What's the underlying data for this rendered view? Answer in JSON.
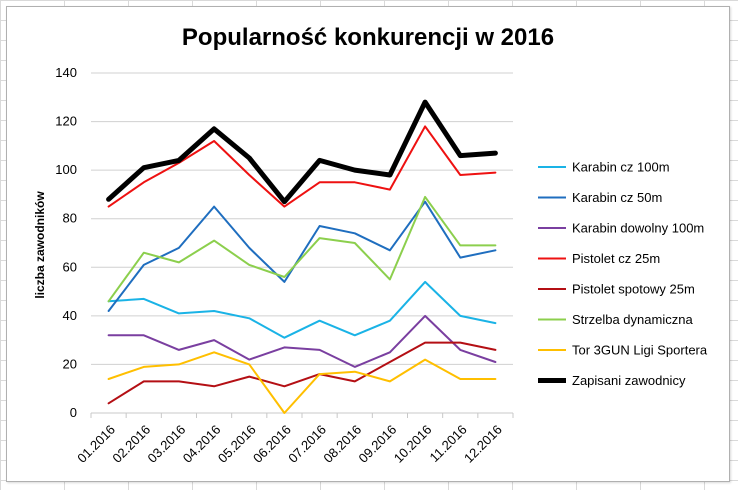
{
  "chart_data": {
    "type": "line",
    "title": "Popularność konkurencji w 2016",
    "xlabel": "",
    "ylabel": "liczba zawodników",
    "ylim": [
      0,
      140
    ],
    "yticks": [
      0,
      20,
      40,
      60,
      80,
      100,
      120,
      140
    ],
    "grid": "horizontal",
    "legend_position": "right",
    "categories": [
      "01.2016",
      "02.2016",
      "03.2016",
      "04.2016",
      "05.2016",
      "06.2016",
      "07.2016",
      "08.2016",
      "09.2016",
      "10.2016",
      "11.2016",
      "12.2016"
    ],
    "series": [
      {
        "name": "Karabin cz 100m",
        "color": "#1ab3e6",
        "values": [
          46,
          47,
          41,
          42,
          39,
          31,
          38,
          32,
          38,
          54,
          40,
          37
        ]
      },
      {
        "name": "Karabin cz 50m",
        "color": "#1f6ebf",
        "values": [
          42,
          61,
          68,
          85,
          68,
          54,
          77,
          74,
          67,
          87,
          64,
          67
        ]
      },
      {
        "name": "Karabin dowolny  100m",
        "color": "#7a3fa0",
        "values": [
          32,
          32,
          26,
          30,
          22,
          27,
          26,
          19,
          25,
          40,
          26,
          21
        ]
      },
      {
        "name": "Pistolet cz 25m",
        "color": "#ee1111",
        "values": [
          85,
          95,
          103,
          112,
          98,
          85,
          95,
          95,
          92,
          118,
          98,
          99
        ]
      },
      {
        "name": "Pistolet spotowy  25m",
        "color": "#b40f14",
        "values": [
          4,
          13,
          13,
          11,
          15,
          11,
          16,
          13,
          21,
          29,
          29,
          26
        ]
      },
      {
        "name": "Strzelba dynamiczna",
        "color": "#8ccf4d",
        "values": [
          46,
          66,
          62,
          71,
          61,
          56,
          72,
          70,
          55,
          89,
          69,
          69
        ]
      },
      {
        "name": "Tor 3GUN Ligi Sportera",
        "color": "#ffbf00",
        "values": [
          14,
          19,
          20,
          25,
          20,
          0,
          16,
          17,
          13,
          22,
          14,
          14
        ]
      },
      {
        "name": "Zapisani zawodnicy",
        "color": "#000000",
        "values": [
          88,
          101,
          104,
          117,
          105,
          87,
          104,
          100,
          98,
          128,
          106,
          107
        ]
      }
    ]
  }
}
